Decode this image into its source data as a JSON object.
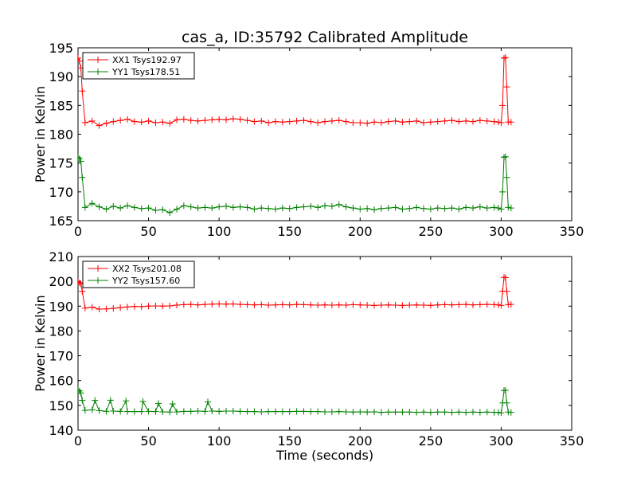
{
  "chart_data": [
    {
      "type": "line",
      "title": "cas_a, ID:35792 Calibrated Amplitude",
      "xlabel": "",
      "ylabel": "Power in Kelvin",
      "xlim": [
        0,
        350
      ],
      "ylim": [
        165,
        195
      ],
      "xticks": [
        0,
        50,
        100,
        150,
        200,
        250,
        300,
        350
      ],
      "yticks": [
        165,
        170,
        175,
        180,
        185,
        190,
        195
      ],
      "grid": false,
      "legend_position": "top-left",
      "marker": "+",
      "series": [
        {
          "name": "XX1 Tsys192.97",
          "color": "#ff0000",
          "x": [
            0,
            1,
            2,
            3,
            5,
            10,
            15,
            20,
            25,
            30,
            35,
            40,
            45,
            50,
            55,
            60,
            65,
            70,
            75,
            80,
            85,
            90,
            95,
            100,
            105,
            110,
            115,
            120,
            125,
            130,
            135,
            140,
            145,
            150,
            155,
            160,
            165,
            170,
            175,
            180,
            185,
            190,
            195,
            200,
            205,
            210,
            215,
            220,
            225,
            230,
            235,
            240,
            245,
            250,
            255,
            260,
            265,
            270,
            275,
            280,
            285,
            290,
            295,
            298,
            300,
            301,
            302,
            303,
            304,
            305,
            307
          ],
          "y": [
            193.2,
            192.7,
            191.5,
            187.5,
            182.0,
            182.3,
            181.5,
            181.9,
            182.2,
            182.4,
            182.6,
            182.2,
            182.1,
            182.3,
            182.0,
            182.1,
            181.9,
            182.5,
            182.6,
            182.4,
            182.3,
            182.4,
            182.5,
            182.6,
            182.5,
            182.7,
            182.6,
            182.4,
            182.2,
            182.3,
            182.0,
            182.2,
            182.1,
            182.2,
            182.3,
            182.4,
            182.2,
            182.0,
            182.2,
            182.3,
            182.4,
            182.2,
            182.0,
            182.0,
            181.9,
            182.1,
            182.0,
            182.2,
            182.3,
            182.1,
            182.2,
            182.3,
            182.0,
            182.1,
            182.2,
            182.3,
            182.4,
            182.2,
            182.3,
            182.2,
            182.4,
            182.3,
            182.2,
            182.1,
            182.0,
            185.0,
            193.2,
            193.3,
            188.2,
            182.1,
            182.1
          ]
        },
        {
          "name": "YY1 Tsys178.51",
          "color": "#008000",
          "x": [
            0,
            1,
            2,
            3,
            5,
            10,
            15,
            20,
            25,
            30,
            35,
            40,
            45,
            50,
            55,
            60,
            65,
            70,
            75,
            80,
            85,
            90,
            95,
            100,
            105,
            110,
            115,
            120,
            125,
            130,
            135,
            140,
            145,
            150,
            155,
            160,
            165,
            170,
            175,
            180,
            185,
            190,
            195,
            200,
            205,
            210,
            215,
            220,
            225,
            230,
            235,
            240,
            245,
            250,
            255,
            260,
            265,
            270,
            275,
            280,
            285,
            290,
            295,
            298,
            300,
            301,
            302,
            303,
            304,
            305,
            307
          ],
          "y": [
            176.0,
            175.8,
            175.3,
            172.5,
            167.3,
            168.0,
            167.4,
            167.0,
            167.5,
            167.2,
            167.6,
            167.3,
            167.1,
            167.2,
            166.8,
            166.9,
            166.4,
            167.0,
            167.6,
            167.4,
            167.2,
            167.3,
            167.2,
            167.4,
            167.5,
            167.3,
            167.4,
            167.3,
            167.0,
            167.2,
            167.1,
            167.0,
            167.2,
            167.1,
            167.3,
            167.4,
            167.5,
            167.3,
            167.6,
            167.5,
            167.8,
            167.4,
            167.2,
            167.0,
            167.1,
            166.9,
            167.1,
            167.2,
            167.3,
            167.0,
            167.1,
            167.3,
            167.1,
            167.0,
            167.2,
            167.1,
            167.2,
            167.0,
            167.3,
            167.2,
            167.4,
            167.2,
            167.3,
            167.2,
            167.0,
            170.0,
            176.0,
            176.1,
            172.5,
            167.3,
            167.2
          ]
        }
      ]
    },
    {
      "type": "line",
      "title": "",
      "xlabel": "Time (seconds)",
      "ylabel": "Power in Kelvin",
      "xlim": [
        0,
        350
      ],
      "ylim": [
        140,
        210
      ],
      "xticks": [
        0,
        50,
        100,
        150,
        200,
        250,
        300,
        350
      ],
      "yticks": [
        140,
        150,
        160,
        170,
        180,
        190,
        200,
        210
      ],
      "grid": false,
      "legend_position": "top-left",
      "marker": "+",
      "series": [
        {
          "name": "XX2 Tsys201.08",
          "color": "#ff0000",
          "x": [
            0,
            1,
            2,
            3,
            5,
            10,
            15,
            20,
            25,
            30,
            35,
            40,
            45,
            50,
            55,
            60,
            65,
            70,
            75,
            80,
            85,
            90,
            95,
            100,
            105,
            110,
            115,
            120,
            125,
            130,
            135,
            140,
            145,
            150,
            155,
            160,
            165,
            170,
            175,
            180,
            185,
            190,
            195,
            200,
            205,
            210,
            215,
            220,
            225,
            230,
            235,
            240,
            245,
            250,
            255,
            260,
            265,
            270,
            275,
            280,
            285,
            290,
            295,
            298,
            300,
            301,
            302,
            303,
            304,
            305,
            307
          ],
          "y": [
            199.8,
            199.4,
            199.0,
            196.0,
            189.2,
            189.6,
            188.8,
            188.9,
            189.1,
            189.4,
            189.7,
            189.9,
            189.8,
            190.0,
            190.1,
            190.0,
            190.1,
            190.4,
            190.6,
            190.7,
            190.5,
            190.7,
            190.8,
            190.9,
            190.8,
            190.9,
            190.7,
            190.6,
            190.5,
            190.6,
            190.4,
            190.5,
            190.6,
            190.5,
            190.7,
            190.6,
            190.5,
            190.4,
            190.5,
            190.4,
            190.5,
            190.4,
            190.6,
            190.5,
            190.4,
            190.3,
            190.4,
            190.5,
            190.4,
            190.3,
            190.4,
            190.5,
            190.4,
            190.3,
            190.5,
            190.6,
            190.5,
            190.6,
            190.7,
            190.5,
            190.6,
            190.7,
            190.6,
            190.5,
            190.3,
            196.0,
            201.6,
            201.5,
            196.0,
            190.6,
            190.7
          ]
        },
        {
          "name": "YY2 Tsys157.60",
          "color": "#008000",
          "x": [
            0,
            1,
            2,
            3,
            5,
            10,
            12,
            15,
            20,
            23,
            25,
            30,
            34,
            35,
            40,
            45,
            46,
            50,
            55,
            57,
            60,
            65,
            67,
            70,
            75,
            80,
            85,
            90,
            92,
            95,
            100,
            105,
            110,
            115,
            120,
            125,
            130,
            135,
            140,
            145,
            150,
            155,
            160,
            165,
            170,
            175,
            180,
            185,
            190,
            195,
            200,
            205,
            210,
            215,
            220,
            225,
            230,
            235,
            240,
            245,
            250,
            255,
            260,
            265,
            270,
            275,
            280,
            285,
            290,
            295,
            298,
            300,
            301,
            302,
            303,
            304,
            305,
            307
          ],
          "y": [
            156.2,
            155.8,
            155.0,
            152.0,
            148.0,
            148.2,
            152.0,
            147.9,
            147.6,
            152.1,
            147.7,
            147.6,
            151.8,
            147.5,
            147.5,
            147.5,
            151.6,
            147.6,
            147.5,
            150.8,
            147.4,
            147.3,
            150.6,
            147.4,
            147.6,
            147.6,
            147.7,
            147.6,
            151.4,
            147.7,
            147.6,
            147.7,
            147.7,
            147.6,
            147.5,
            147.5,
            147.4,
            147.5,
            147.5,
            147.5,
            147.5,
            147.6,
            147.6,
            147.5,
            147.5,
            147.4,
            147.4,
            147.5,
            147.4,
            147.3,
            147.4,
            147.3,
            147.4,
            147.2,
            147.3,
            147.3,
            147.3,
            147.3,
            147.2,
            147.3,
            147.2,
            147.3,
            147.3,
            147.2,
            147.3,
            147.2,
            147.3,
            147.2,
            147.3,
            147.2,
            147.2,
            147.0,
            151.0,
            156.0,
            156.1,
            151.0,
            147.3,
            147.2
          ]
        }
      ]
    }
  ]
}
